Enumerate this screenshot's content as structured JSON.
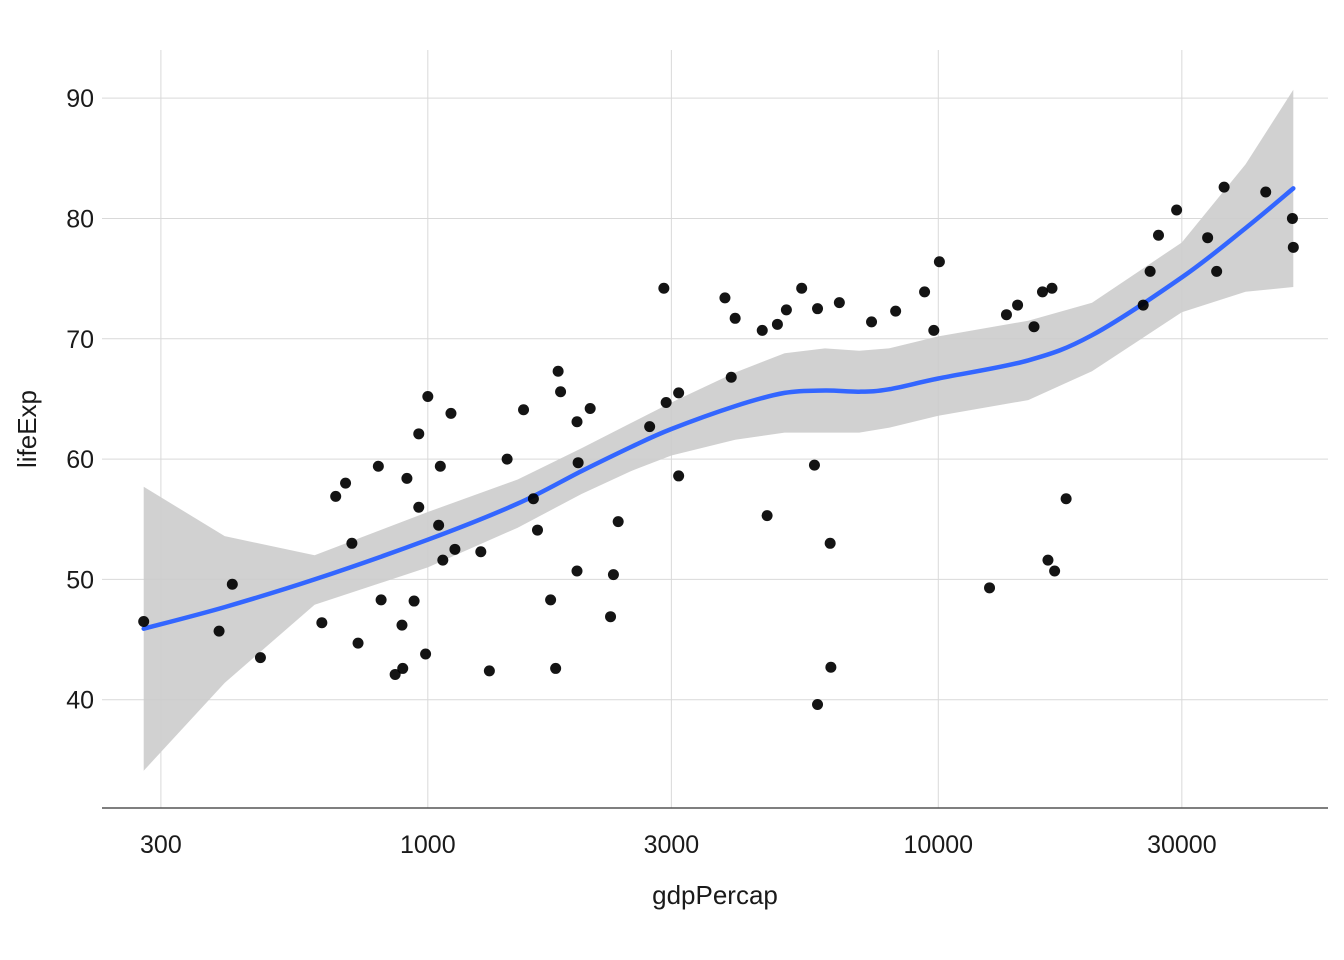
{
  "chart_data": {
    "type": "scatter",
    "title": "",
    "xlabel": "gdpPercap",
    "ylabel": "lifeExp",
    "x_scale": "log10",
    "xlim": [
      230,
      58000
    ],
    "ylim": [
      31,
      94
    ],
    "x_ticks": [
      300,
      1000,
      3000,
      10000,
      30000
    ],
    "x_tick_labels": [
      "300",
      "1000",
      "3000",
      "10000",
      "30000"
    ],
    "y_ticks": [
      40,
      50,
      60,
      70,
      80,
      90
    ],
    "y_tick_labels": [
      "40",
      "50",
      "60",
      "70",
      "80",
      "90"
    ],
    "grid": true,
    "legend": "none",
    "colors": {
      "points": "#000000",
      "smooth_line": "#3366ff",
      "confidence_band": "#cccccc",
      "grid": "#d9d9d9",
      "axis": "#555555"
    },
    "points": [
      [
        277.6,
        46.5
      ],
      [
        390,
        45.7
      ],
      [
        414,
        49.6
      ],
      [
        470,
        43.5
      ],
      [
        620,
        46.4
      ],
      [
        660,
        56.9
      ],
      [
        690,
        58.0
      ],
      [
        710,
        53.0
      ],
      [
        730,
        44.7
      ],
      [
        800,
        59.4
      ],
      [
        810,
        48.3
      ],
      [
        863,
        42.1
      ],
      [
        890,
        46.2
      ],
      [
        893,
        42.6
      ],
      [
        910,
        58.4
      ],
      [
        940,
        48.2
      ],
      [
        960,
        56.0
      ],
      [
        960,
        62.1
      ],
      [
        990,
        43.8
      ],
      [
        1000,
        65.2
      ],
      [
        1050,
        54.5
      ],
      [
        1058,
        59.4
      ],
      [
        1070,
        51.6
      ],
      [
        1110,
        63.8
      ],
      [
        1130,
        52.5
      ],
      [
        1270,
        52.3
      ],
      [
        1320,
        42.4
      ],
      [
        1430,
        60.0
      ],
      [
        1540,
        64.1
      ],
      [
        1610,
        56.7
      ],
      [
        1640,
        54.1
      ],
      [
        1740,
        48.3
      ],
      [
        1780,
        42.6
      ],
      [
        1800,
        67.3
      ],
      [
        1820,
        65.6
      ],
      [
        1960,
        50.7
      ],
      [
        1970,
        59.7
      ],
      [
        1960,
        63.1
      ],
      [
        2080,
        64.2
      ],
      [
        2280,
        46.9
      ],
      [
        2310,
        50.4
      ],
      [
        2360,
        54.8
      ],
      [
        2720,
        62.7
      ],
      [
        2900,
        74.2
      ],
      [
        2930,
        64.7
      ],
      [
        3100,
        58.6
      ],
      [
        3100,
        65.5
      ],
      [
        3820,
        73.4
      ],
      [
        3930,
        66.8
      ],
      [
        4000,
        71.7
      ],
      [
        4520,
        70.7
      ],
      [
        4620,
        55.3
      ],
      [
        4840,
        71.2
      ],
      [
        5040,
        72.4
      ],
      [
        5400,
        74.2
      ],
      [
        5720,
        59.5
      ],
      [
        5800,
        39.6
      ],
      [
        5800,
        72.5
      ],
      [
        6140,
        53.0
      ],
      [
        6160,
        42.7
      ],
      [
        6400,
        73.0
      ],
      [
        7400,
        71.4
      ],
      [
        8250,
        72.3
      ],
      [
        9400,
        73.9
      ],
      [
        9800,
        70.7
      ],
      [
        10050,
        76.4
      ],
      [
        12600,
        49.3
      ],
      [
        13600,
        72.0
      ],
      [
        14300,
        72.8
      ],
      [
        15400,
        71.0
      ],
      [
        16000,
        73.9
      ],
      [
        16400,
        51.6
      ],
      [
        16700,
        74.2
      ],
      [
        16900,
        50.7
      ],
      [
        17800,
        56.7
      ],
      [
        25200,
        72.8
      ],
      [
        26000,
        75.6
      ],
      [
        27000,
        78.6
      ],
      [
        29300,
        80.7
      ],
      [
        33700,
        78.4
      ],
      [
        35100,
        75.6
      ],
      [
        36300,
        82.6
      ],
      [
        43800,
        82.2
      ],
      [
        49400,
        80.0
      ],
      [
        49600,
        77.6
      ]
    ],
    "smooth_fit": [
      [
        277.6,
        45.9
      ],
      [
        400,
        47.7
      ],
      [
        600,
        50.0
      ],
      [
        1000,
        53.3
      ],
      [
        1500,
        56.3
      ],
      [
        2000,
        59.0
      ],
      [
        2500,
        61.0
      ],
      [
        3000,
        62.5
      ],
      [
        4000,
        64.4
      ],
      [
        5000,
        65.5
      ],
      [
        6000,
        65.7
      ],
      [
        7000,
        65.6
      ],
      [
        8000,
        65.8
      ],
      [
        10000,
        66.7
      ],
      [
        15000,
        68.2
      ],
      [
        20000,
        70.3
      ],
      [
        30000,
        75.1
      ],
      [
        40000,
        79.2
      ],
      [
        49600,
        82.5
      ]
    ],
    "smooth_band_upper": [
      [
        277.6,
        57.7
      ],
      [
        400,
        53.6
      ],
      [
        600,
        52.0
      ],
      [
        1000,
        55.6
      ],
      [
        1500,
        58.3
      ],
      [
        2000,
        60.9
      ],
      [
        2500,
        63.0
      ],
      [
        3000,
        64.7
      ],
      [
        4000,
        67.2
      ],
      [
        5000,
        68.8
      ],
      [
        6000,
        69.2
      ],
      [
        7000,
        69.0
      ],
      [
        8000,
        69.2
      ],
      [
        10000,
        70.2
      ],
      [
        15000,
        71.5
      ],
      [
        20000,
        73.0
      ],
      [
        30000,
        78.0
      ],
      [
        40000,
        84.5
      ],
      [
        49600,
        90.7
      ]
    ],
    "smooth_band_lower": [
      [
        277.6,
        34.1
      ],
      [
        400,
        41.4
      ],
      [
        600,
        47.9
      ],
      [
        1000,
        51.0
      ],
      [
        1500,
        54.3
      ],
      [
        2000,
        57.1
      ],
      [
        2500,
        59.0
      ],
      [
        3000,
        60.3
      ],
      [
        4000,
        61.6
      ],
      [
        5000,
        62.2
      ],
      [
        6000,
        62.2
      ],
      [
        7000,
        62.2
      ],
      [
        8000,
        62.6
      ],
      [
        10000,
        63.6
      ],
      [
        15000,
        64.9
      ],
      [
        20000,
        67.3
      ],
      [
        30000,
        72.2
      ],
      [
        40000,
        73.9
      ],
      [
        49600,
        74.3
      ]
    ]
  }
}
